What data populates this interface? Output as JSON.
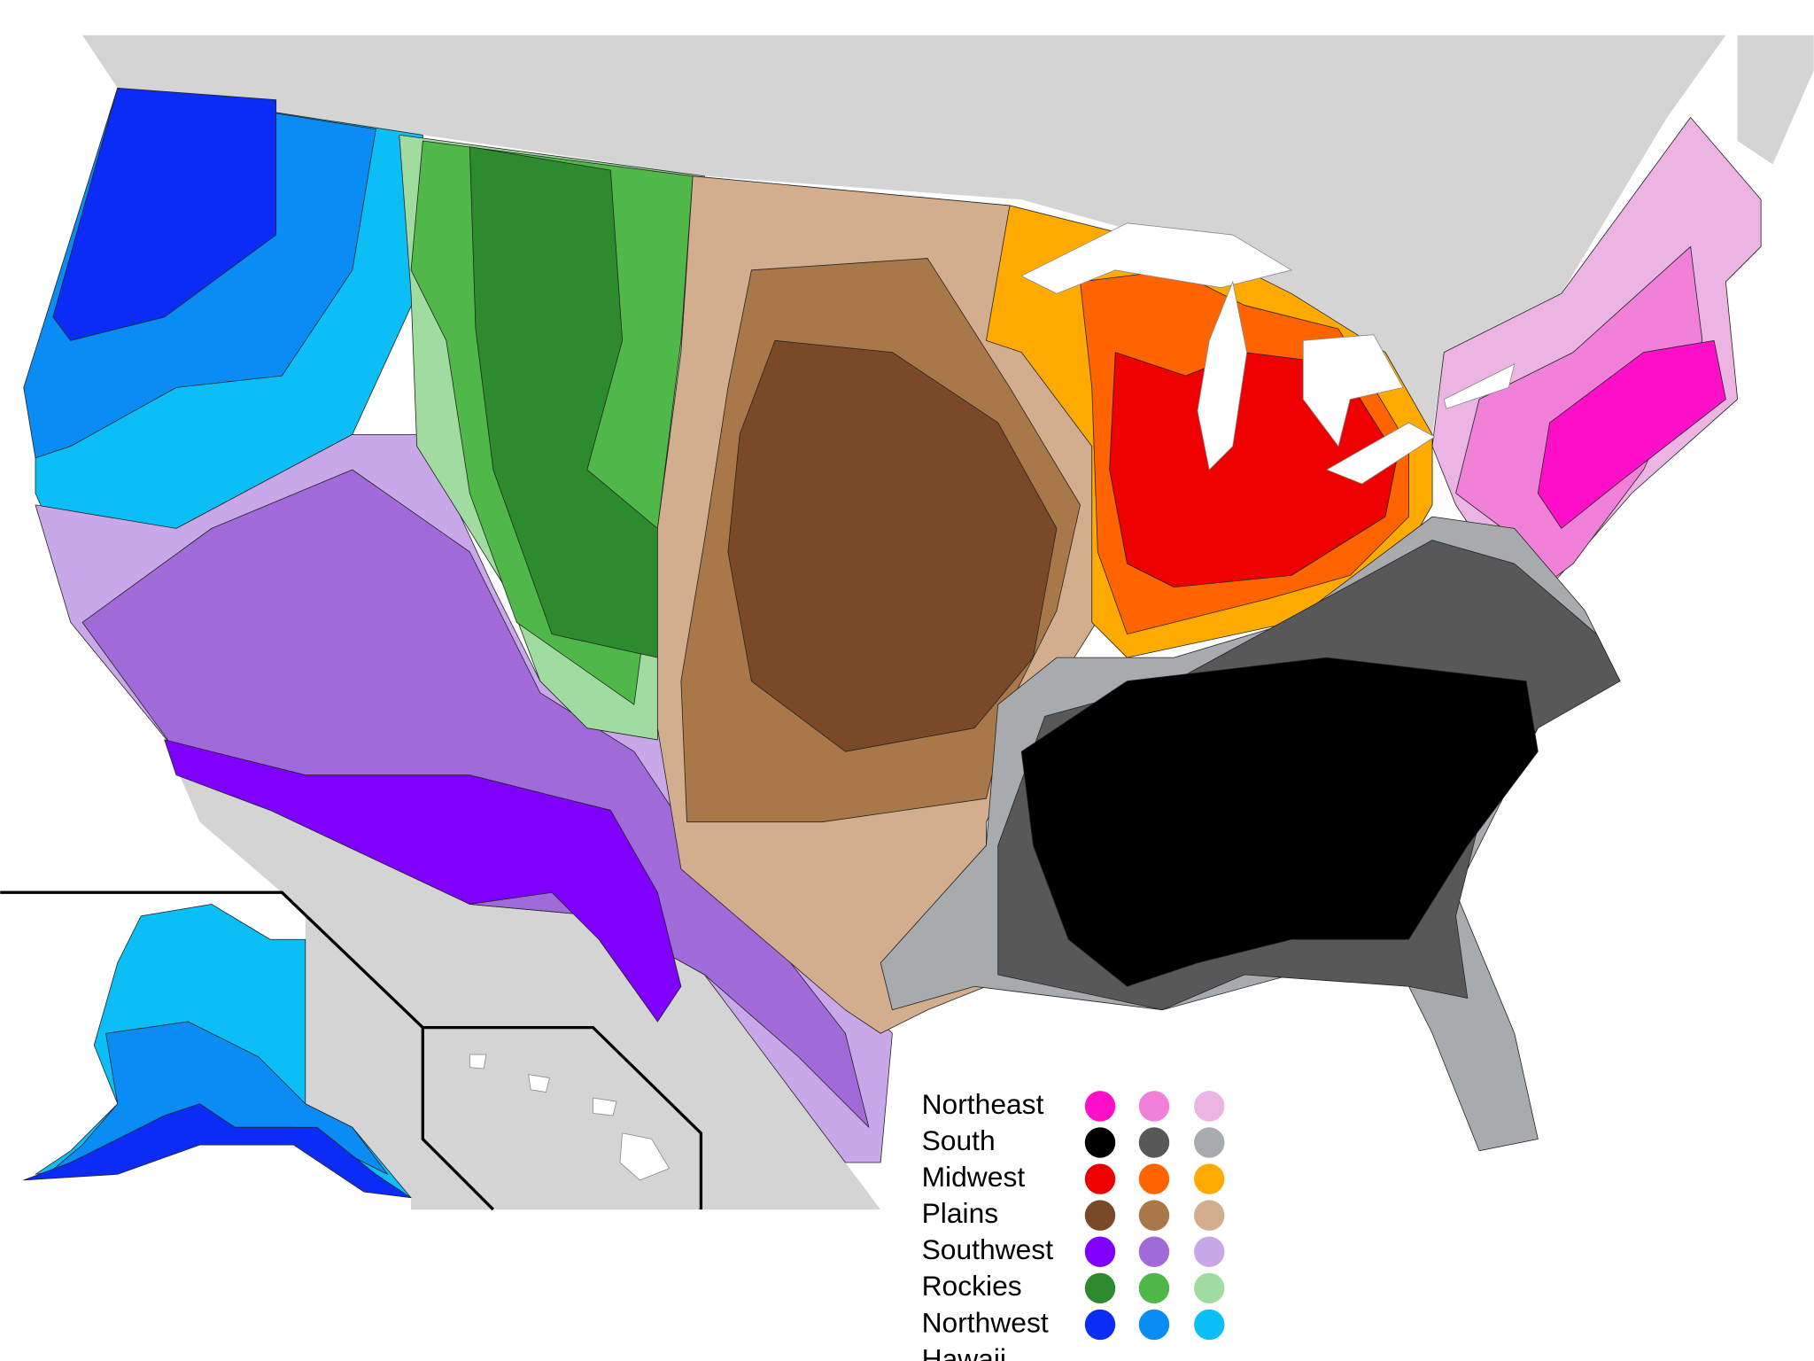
{
  "legend": [
    {
      "label": "Northeast",
      "colors": [
        "#ff10c8",
        "#f080d8",
        "#ebb4e2"
      ]
    },
    {
      "label": "South",
      "colors": [
        "#000000",
        "#585858",
        "#a8abad"
      ]
    },
    {
      "label": "Midwest",
      "colors": [
        "#ee0000",
        "#ff6400",
        "#ffaa00"
      ]
    },
    {
      "label": "Plains",
      "colors": [
        "#7a4a28",
        "#a87848",
        "#d2ae8e"
      ]
    },
    {
      "label": "Southwest",
      "colors": [
        "#8000ff",
        "#a06ad8",
        "#c8a8e8"
      ]
    },
    {
      "label": "Rockies",
      "colors": [
        "#2e8a2e",
        "#50b848",
        "#a0dca0"
      ]
    },
    {
      "label": "Northwest",
      "colors": [
        "#0a2cf5",
        "#0a8cf5",
        "#0bbef5"
      ]
    },
    {
      "label": "Hawaii"
    }
  ]
}
